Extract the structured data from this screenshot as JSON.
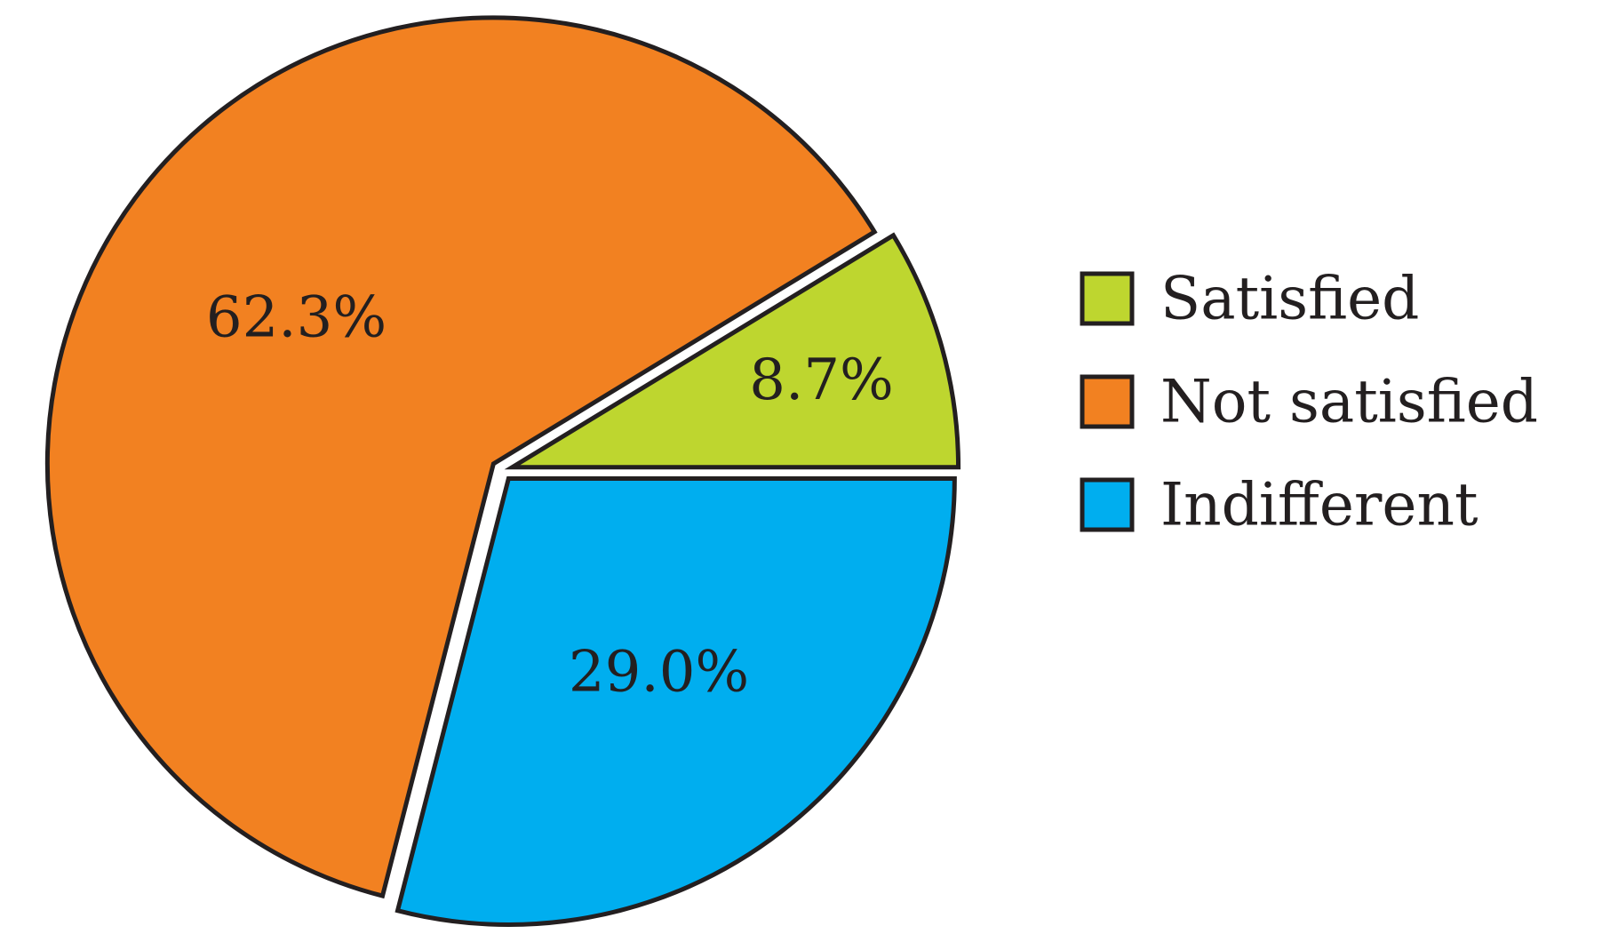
{
  "chart_data": {
    "type": "pie",
    "title": "",
    "slices": [
      {
        "name": "Satisfied",
        "value": 8.7,
        "label": "8.7%",
        "color": "#BED62F"
      },
      {
        "name": "Not satisfied",
        "value": 62.3,
        "label": "62.3%",
        "color": "#F28121"
      },
      {
        "name": "Indifferent",
        "value": 29.0,
        "label": "29.0%",
        "color": "#00AEEF"
      }
    ],
    "exploded": true,
    "legend": {
      "placement": "right",
      "items": [
        "Satisfied",
        "Not satisfied",
        "Indifferent"
      ]
    },
    "outline_color": "#231F20",
    "text_color": "#231F20"
  }
}
